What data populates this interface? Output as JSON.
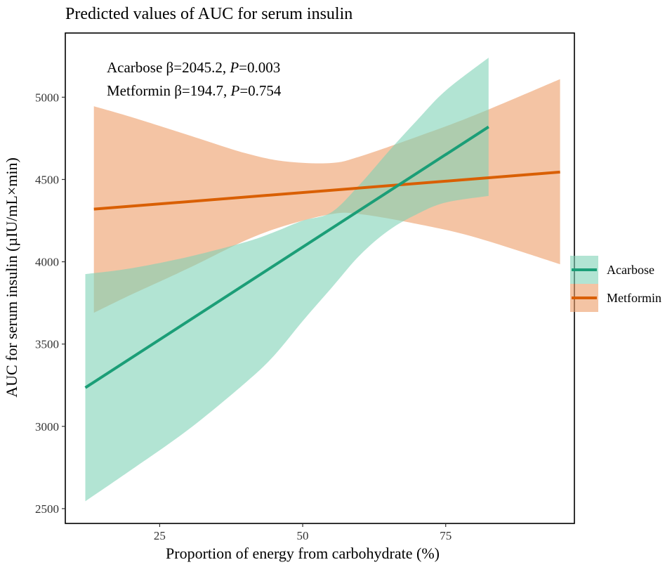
{
  "chart_data": {
    "type": "line",
    "title": "Predicted values of AUC for serum insulin",
    "xlabel": "Proportion of energy from carbohydrate (%)",
    "ylabel": "AUC for serum insulin (µIU/mL×min)",
    "xlim": [
      8.5,
      97.5
    ],
    "ylim": [
      2410,
      5390
    ],
    "xticks": [
      25,
      50,
      75
    ],
    "yticks": [
      2500,
      3000,
      3500,
      4000,
      4500,
      5000
    ],
    "grid": false,
    "legend_position": "right",
    "annotations": [
      {
        "drug": "Acarbose",
        "beta": "β=2045.2, ",
        "p_label": "P",
        "p_value": "=0.003"
      },
      {
        "drug": "Metformin",
        "beta": "β=194.7, ",
        "p_label": "P",
        "p_value": "=0.754"
      }
    ],
    "series": [
      {
        "name": "Metformin",
        "color": "#D95F02",
        "band_color": "#ED9D67",
        "line": {
          "x": [
            13.5,
            95
          ],
          "y": [
            4320,
            4545
          ]
        },
        "ci_x": [
          13.5,
          20,
          30,
          40,
          47,
          55,
          60,
          70,
          80,
          95
        ],
        "ci_upper": [
          4945,
          4880,
          4770,
          4660,
          4610,
          4600,
          4640,
          4760,
          4890,
          5110
        ],
        "ci_lower": [
          3690,
          3800,
          3960,
          4130,
          4220,
          4290,
          4290,
          4230,
          4150,
          3985
        ]
      },
      {
        "name": "Acarbose",
        "color": "#1B9E77",
        "band_color": "#7ED2B5",
        "line": {
          "x": [
            12,
            82.5
          ],
          "y": [
            3235,
            4820
          ]
        },
        "ci_x": [
          12,
          20,
          30,
          40,
          45,
          50,
          55,
          60,
          65,
          70,
          75,
          82.5
        ],
        "ci_upper": [
          3925,
          3960,
          4030,
          4120,
          4180,
          4250,
          4300,
          4470,
          4670,
          4860,
          5040,
          5240
        ],
        "ci_lower": [
          2545,
          2735,
          2980,
          3265,
          3430,
          3640,
          3840,
          4040,
          4190,
          4290,
          4360,
          4400
        ]
      }
    ]
  }
}
